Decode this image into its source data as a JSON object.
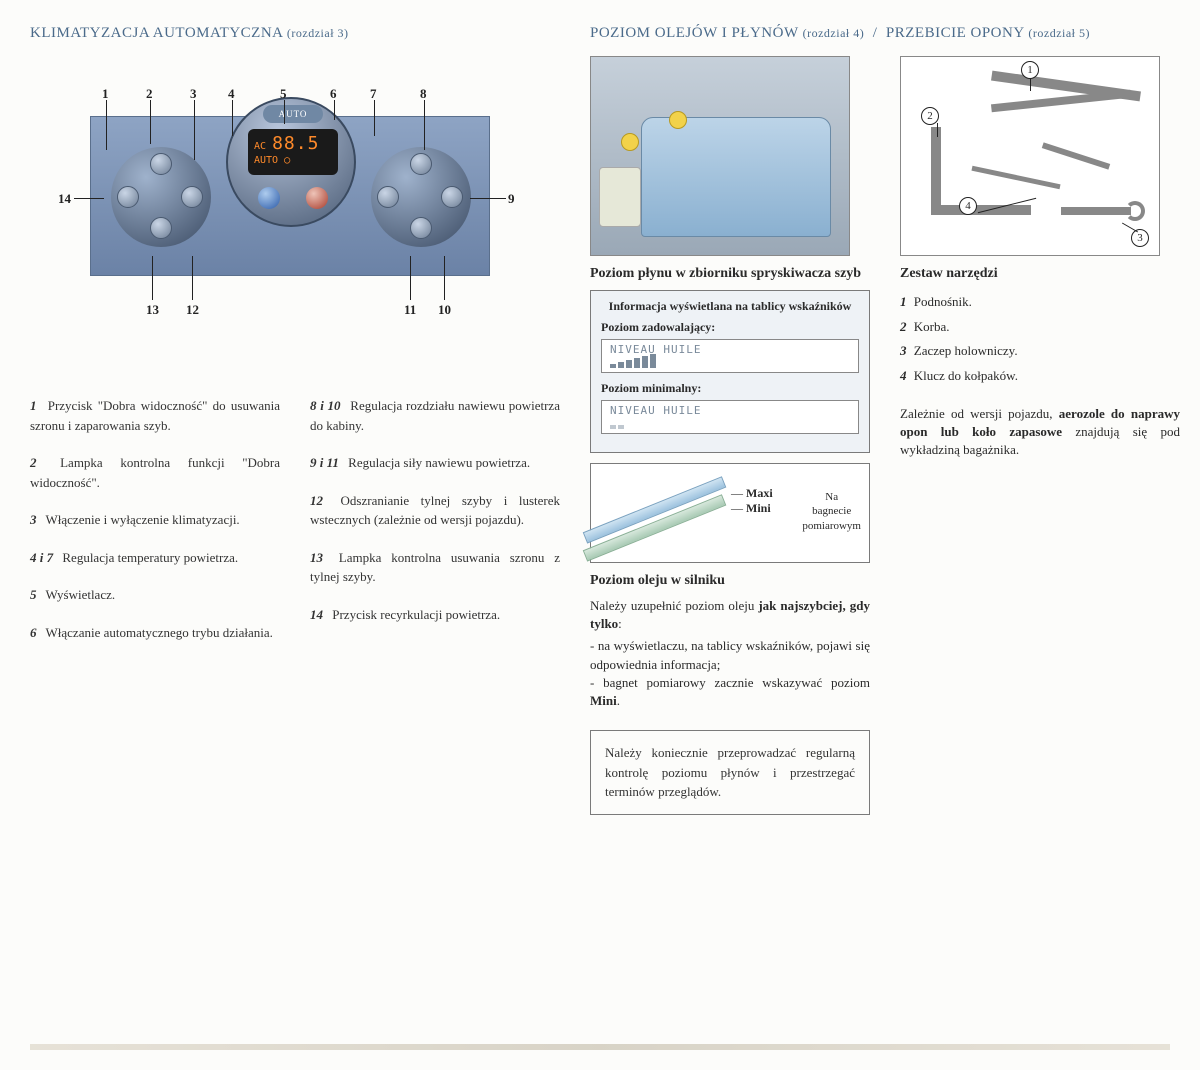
{
  "left": {
    "title": "KLIMATYZACJA AUTOMATYCZNA",
    "chapter": "(rozdział 3)",
    "display": {
      "auto": "AUTO",
      "line1": "AC",
      "temp": "88.5",
      "line2": "AUTO"
    },
    "callouts": [
      "1",
      "2",
      "3",
      "4",
      "5",
      "6",
      "7",
      "8",
      "9",
      "10",
      "11",
      "12",
      "13",
      "14"
    ],
    "legend_left": [
      {
        "n": "1",
        "t": "Przycisk \"Dobra widoczność\" do usuwania szronu i zaparowania szyb."
      },
      {
        "n": "2",
        "t": "Lampka kontrolna funkcji \"Dobra widoczność\"."
      },
      {
        "n": "3",
        "t": "Włączenie i wyłączenie klimatyzacji."
      },
      {
        "n": "4 i 7",
        "t": "Regulacja temperatury powietrza."
      },
      {
        "n": "5",
        "t": "Wyświetlacz."
      },
      {
        "n": "6",
        "t": "Włączanie automatycznego trybu działania."
      }
    ],
    "legend_right": [
      {
        "n": "8 i 10",
        "t": "Regulacja rozdziału nawiewu powietrza do kabiny."
      },
      {
        "n": "9 i 11",
        "t": "Regulacja siły nawiewu powietrza."
      },
      {
        "n": "12",
        "t": "Odszranianie tylnej szyby i lusterek wstecznych (zależnie od wersji pojazdu)."
      },
      {
        "n": "13",
        "t": "Lampka kontrolna usuwania szronu z tylnej szyby."
      },
      {
        "n": "14",
        "t": "Przycisk recyrkulacji powietrza."
      }
    ]
  },
  "mid": {
    "title": "POZIOM OLEJÓW I PŁYNÓW",
    "chapter": "(rozdział 4)",
    "washer_head": "Poziom płynu w zbiorniku spryskiwacza szyb",
    "info_title": "Informacja wyświetlana na tablicy wskaźników",
    "ok_label": "Poziom zadowalający:",
    "min_label": "Poziom minimalny:",
    "lcd_text": "NIVEAU HUILE",
    "dip_maxi": "Maxi",
    "dip_mini": "Mini",
    "dip_side1": "Na",
    "dip_side2": "bagnecie",
    "dip_side3": "pomiarowym",
    "oil_head": "Poziom oleju w silniku",
    "oil_intro": "Należy uzupełnić poziom oleju ",
    "oil_bold": "jak najszybciej, gdy tylko",
    "oil_b1": "na wyświetlaczu, na tablicy wskaźników, pojawi się odpowiednia informacja;",
    "oil_b2_a": "bagnet pomiarowy zacznie wskazywać poziom ",
    "oil_b2_b": "Mini",
    "note": "Należy koniecznie przeprowadzać regularną kontrolę poziomu płynów i przestrzegać terminów przeglądów."
  },
  "right": {
    "title": "PRZEBICIE OPONY",
    "chapter": "(rozdział 5)",
    "tk_head": "Zestaw narzędzi",
    "tk_nums": [
      "1",
      "2",
      "3",
      "4"
    ],
    "items": [
      {
        "n": "1",
        "t": "Podnośnik."
      },
      {
        "n": "2",
        "t": "Korba."
      },
      {
        "n": "3",
        "t": "Zaczep holowniczy."
      },
      {
        "n": "4",
        "t": "Klucz do kołpaków."
      }
    ],
    "note_a": "Zależnie od wersji pojazdu, ",
    "note_b": "aerozole do naprawy opon lub koło zapasowe",
    "note_c": " znajdują się pod wykładziną bagażnika."
  }
}
